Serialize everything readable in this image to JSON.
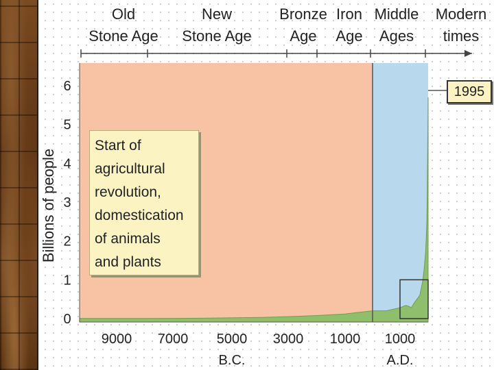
{
  "chart_data": {
    "type": "area",
    "xlabel": "",
    "ylabel": "Billions of people",
    "xlim": [
      -10500,
      1995
    ],
    "ylim": [
      0,
      6.6
    ],
    "yticks": [
      0,
      1,
      2,
      3,
      4,
      5,
      6
    ],
    "xticks": [
      {
        "year": -9000,
        "label": "9000"
      },
      {
        "year": -7000,
        "label": "7000"
      },
      {
        "year": -5000,
        "label": "5000"
      },
      {
        "year": -3000,
        "label": "3000"
      },
      {
        "year": -1000,
        "label": "1000"
      },
      {
        "year": 1000,
        "label": "1000"
      }
    ],
    "era_suffixes": [
      {
        "label": "B.C.",
        "year": -5000
      },
      {
        "label": "A.D.",
        "year": 1000
      }
    ],
    "eras": [
      {
        "name_lines": [
          "Old",
          "Stone Age"
        ],
        "start": -10500,
        "end": -8000
      },
      {
        "name_lines": [
          "New",
          "Stone Age"
        ],
        "start": -8000,
        "end": -2500
      },
      {
        "name_lines": [
          "Bronze",
          "Age"
        ],
        "start": -2500,
        "end": -1500
      },
      {
        "name_lines": [
          "Iron",
          "Age"
        ],
        "start": -1500,
        "end": -500
      },
      {
        "name_lines": [
          "Middle",
          "Ages"
        ],
        "start": -500,
        "end": 1500
      },
      {
        "name_lines": [
          "Modern",
          "times"
        ],
        "start": 1500,
        "end": 1995
      }
    ],
    "shaded_regions": [
      {
        "start": -10500,
        "end": 0,
        "color": "#f7c3a4"
      },
      {
        "start": 0,
        "end": 1995,
        "color": "#b8d8ee"
      }
    ],
    "series": [
      {
        "color": "#8fbf6a",
        "points": [
          [
            -10500,
            0.004
          ],
          [
            -8000,
            0.005
          ],
          [
            -6000,
            0.01
          ],
          [
            -4000,
            0.03
          ],
          [
            -3000,
            0.05
          ],
          [
            -2000,
            0.08
          ],
          [
            -1000,
            0.12
          ],
          [
            -500,
            0.16
          ],
          [
            0,
            0.2
          ],
          [
            500,
            0.2
          ],
          [
            1000,
            0.28
          ],
          [
            1200,
            0.34
          ],
          [
            1300,
            0.32
          ],
          [
            1400,
            0.28
          ],
          [
            1500,
            0.4
          ],
          [
            1600,
            0.5
          ],
          [
            1700,
            0.6
          ],
          [
            1800,
            0.95
          ],
          [
            1850,
            1.25
          ],
          [
            1900,
            1.65
          ],
          [
            1925,
            2.0
          ],
          [
            1950,
            2.5
          ],
          [
            1960,
            3.0
          ],
          [
            1970,
            3.7
          ],
          [
            1980,
            4.4
          ],
          [
            1990,
            5.3
          ],
          [
            1995,
            5.7
          ]
        ]
      }
    ],
    "highlight_box": {
      "x_start": 1000,
      "x_end": 1995,
      "y_start": 0,
      "y_end": 1.0
    },
    "annotations": [
      {
        "lines": [
          "Start of",
          "agricultural",
          "revolution,",
          "domestication",
          "of animals",
          "and plants"
        ]
      },
      {
        "label": "1995",
        "year": 1995,
        "value": 5.7
      }
    ]
  }
}
